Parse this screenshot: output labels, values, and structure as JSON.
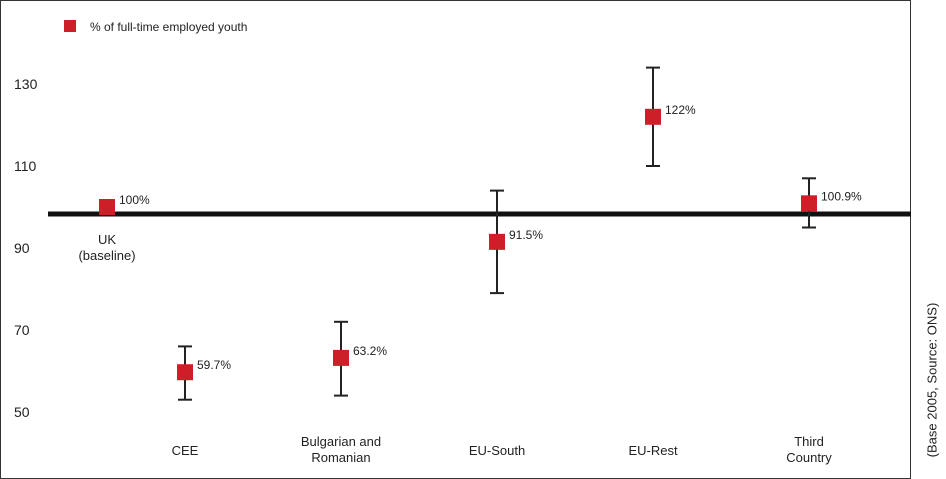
{
  "side_note": "(Base 2005, Source: ONS)",
  "chart_data": {
    "type": "scatter",
    "legend": {
      "label": "% of full-time employed youth",
      "position": "top-left"
    },
    "categories": [
      [
        "UK",
        "(baseline)"
      ],
      [
        "CEE"
      ],
      [
        "Bulgarian and",
        "Romanian"
      ],
      [
        "EU-South"
      ],
      [
        "EU-Rest"
      ],
      [
        "Third",
        "Country"
      ]
    ],
    "values": [
      100,
      59.7,
      63.2,
      91.5,
      122,
      100.9
    ],
    "point_labels": [
      "100%",
      "59.7%",
      "63.2%",
      "91.5%",
      "122%",
      "100.9%"
    ],
    "error_low": [
      null,
      53,
      54,
      79,
      110,
      95
    ],
    "error_high": [
      null,
      66,
      72,
      104,
      134,
      107
    ],
    "baseline": 100,
    "y_ticks": [
      50,
      70,
      90,
      110,
      130
    ],
    "ylim": [
      45,
      143
    ],
    "grid": false,
    "colors": {
      "marker": "#cc1f27",
      "baseline": "#111111",
      "error_bar": "#222222",
      "frame": "#333333"
    }
  }
}
